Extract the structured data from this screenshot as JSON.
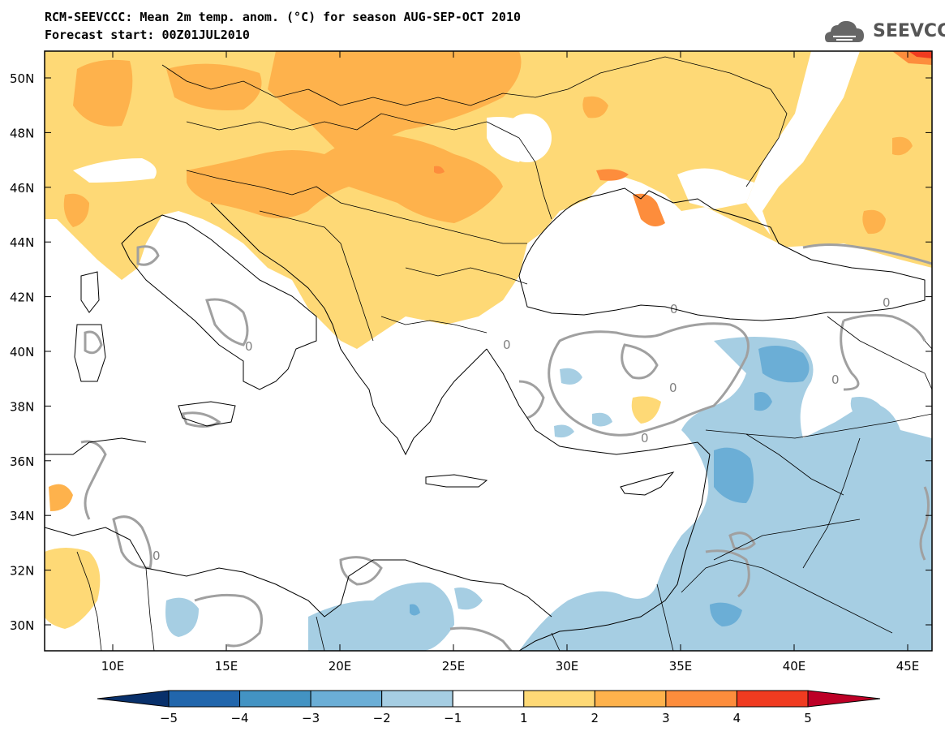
{
  "header": {
    "title_line1": "RCM-SEEVCCC: Mean 2m temp. anom. (°C) for season AUG-SEP-OCT 2010",
    "title_line2": "Forecast start: 00Z01JUL2010",
    "logo_text": "SEEVCCC"
  },
  "map": {
    "lat_labels": [
      "50N",
      "48N",
      "46N",
      "44N",
      "42N",
      "40N",
      "38N",
      "36N",
      "34N",
      "32N",
      "30N"
    ],
    "lon_labels": [
      "10E",
      "15E",
      "20E",
      "25E",
      "30E",
      "35E",
      "40E",
      "45E"
    ],
    "contour_label": "0"
  },
  "colorbar": {
    "labels": [
      "-5",
      "-4",
      "-3",
      "-2",
      "-1",
      "1",
      "2",
      "3",
      "4",
      "5"
    ],
    "colors": [
      "#08306b",
      "#2166ac",
      "#4393c3",
      "#6baed6",
      "#a6cee3",
      "#ffffff",
      "#fed976",
      "#feb24c",
      "#fd8d3c",
      "#f03b20",
      "#bd0026"
    ]
  }
}
